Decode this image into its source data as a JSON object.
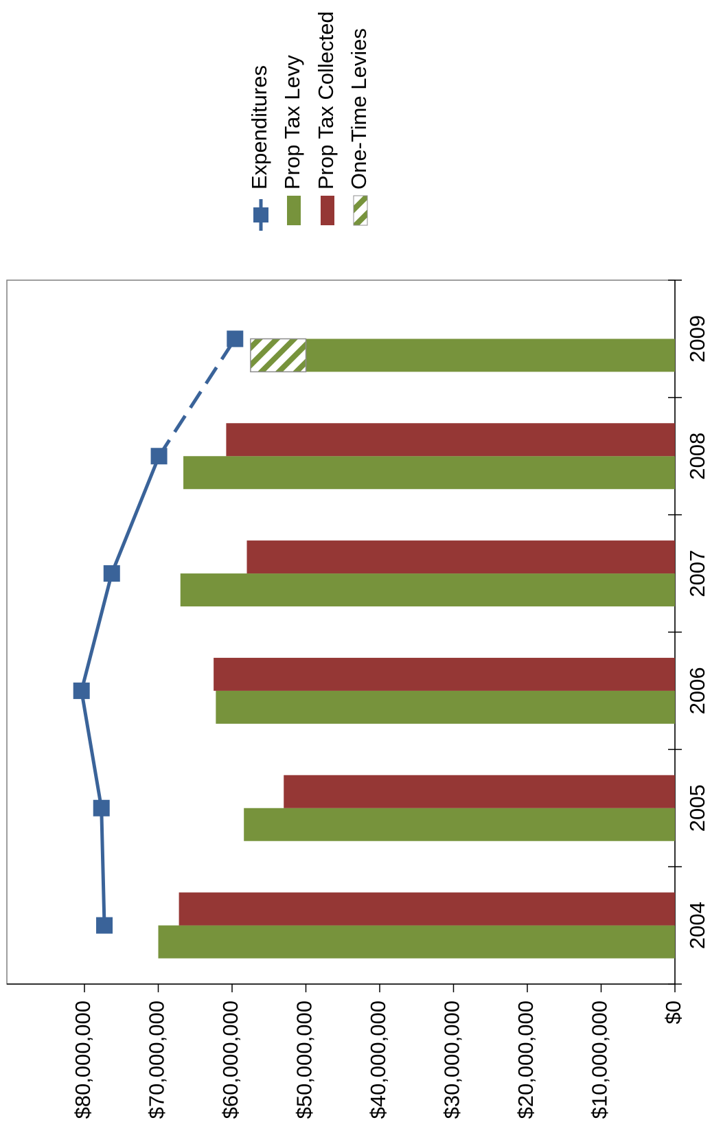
{
  "chart_data": {
    "type": "bar",
    "orientation": "rotated-90-clockwise",
    "categories": [
      "2004",
      "2005",
      "2006",
      "2007",
      "2008",
      "2009"
    ],
    "series": [
      {
        "name": "Expenditures",
        "kind": "line",
        "color": "#3A6399",
        "values": [
          77300000,
          77700000,
          80400000,
          76300000,
          69900000,
          59600000
        ],
        "dashed_last_segment": true
      },
      {
        "name": "Prop Tax Levy",
        "kind": "bar",
        "color": "#77933C",
        "values": [
          70000000,
          58400000,
          62200000,
          67000000,
          66600000,
          50000000
        ]
      },
      {
        "name": "Prop Tax Collected",
        "kind": "bar",
        "color": "#953735",
        "values": [
          67200000,
          53000000,
          62500000,
          58000000,
          60800000,
          null
        ]
      },
      {
        "name": "One-Time Levies",
        "kind": "stacked-bar-hatched",
        "color": "#77933C",
        "values": [
          null,
          null,
          null,
          null,
          null,
          7500000
        ]
      }
    ],
    "ylim": [
      0,
      85000000
    ],
    "y_ticks": [
      {
        "value": 0,
        "label": "$0"
      },
      {
        "value": 10000000,
        "label": "$10,000,000"
      },
      {
        "value": 20000000,
        "label": "$20,000,000"
      },
      {
        "value": 30000000,
        "label": "$30,000,000"
      },
      {
        "value": 40000000,
        "label": "$40,000,000"
      },
      {
        "value": 50000000,
        "label": "$50,000,000"
      },
      {
        "value": 60000000,
        "label": "$60,000,000"
      },
      {
        "value": 70000000,
        "label": "$70,000,000"
      },
      {
        "value": 80000000,
        "label": "$80,000,000"
      }
    ],
    "legend": {
      "placement": "top-right",
      "entries": [
        "Expenditures",
        "Prop Tax Levy",
        "Prop Tax Collected",
        "One-Time Levies"
      ]
    },
    "grid": false,
    "title": "",
    "xlabel": "",
    "ylabel": ""
  }
}
